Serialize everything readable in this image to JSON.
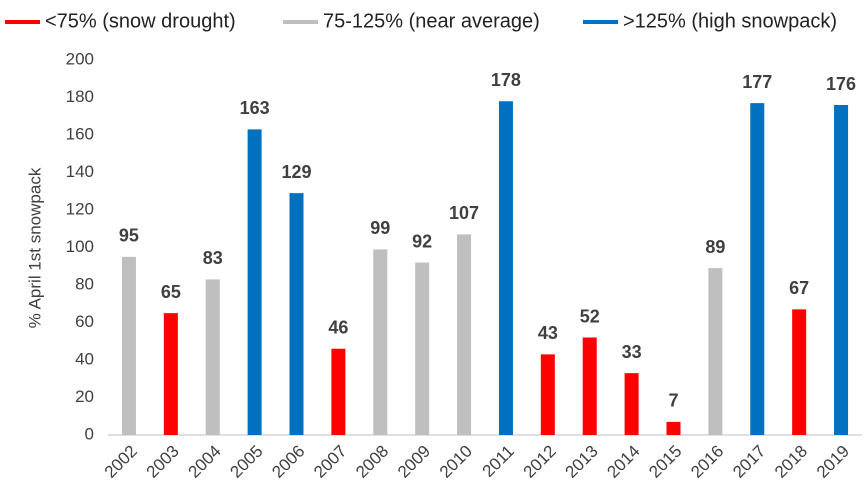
{
  "chart_data": {
    "type": "bar",
    "y_label": "% April 1st snowpack",
    "categories": [
      "2002",
      "2003",
      "2004",
      "2005",
      "2006",
      "2007",
      "2008",
      "2009",
      "2010",
      "2011",
      "2012",
      "2013",
      "2014",
      "2015",
      "2016",
      "2017",
      "2018",
      "2019"
    ],
    "series": [
      {
        "name": "<75% (snow drought)",
        "color": "#ff0000",
        "values": [
          null,
          65,
          null,
          null,
          null,
          46,
          null,
          null,
          null,
          null,
          43,
          52,
          33,
          7,
          null,
          null,
          67,
          null
        ]
      },
      {
        "name": "75-125% (near average)",
        "color": "#bfbfbf",
        "values": [
          95,
          null,
          83,
          null,
          null,
          null,
          99,
          92,
          107,
          null,
          null,
          null,
          null,
          null,
          89,
          null,
          null,
          null
        ]
      },
      {
        "name": ">125% (high snowpack)",
        "color": "#0070c0",
        "values": [
          null,
          null,
          null,
          163,
          129,
          null,
          null,
          null,
          null,
          178,
          null,
          null,
          null,
          null,
          null,
          177,
          null,
          176
        ]
      }
    ],
    "ylim": [
      0,
      200
    ],
    "yticks": [
      0,
      20,
      40,
      60,
      80,
      100,
      120,
      140,
      160,
      180,
      200
    ]
  }
}
